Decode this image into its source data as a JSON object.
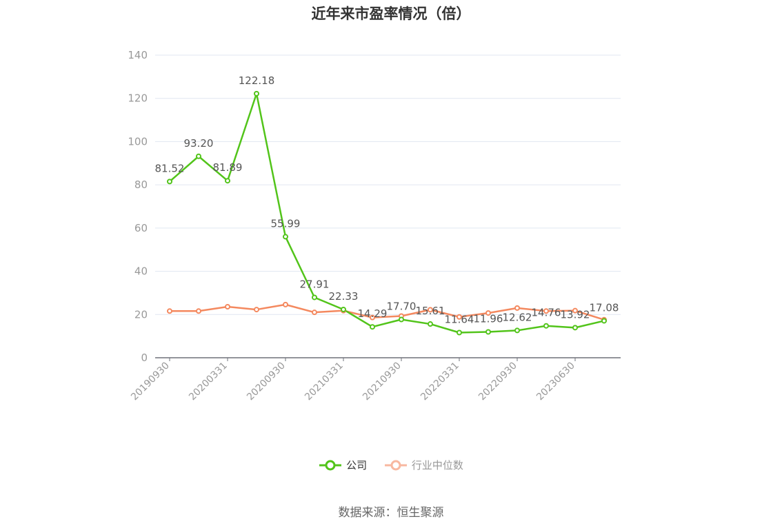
{
  "chart_data": {
    "type": "line",
    "title": "近年来市盈率情况（倍）",
    "ylim": [
      0,
      140
    ],
    "yticks": [
      0,
      20,
      40,
      60,
      80,
      100,
      120,
      140
    ],
    "x_tick_labels": [
      "20190930",
      "20200331",
      "20200930",
      "20210331",
      "20210930",
      "20220331",
      "20220930",
      "20230630"
    ],
    "x_tick_positions": [
      0,
      2,
      4,
      6,
      8,
      10,
      12,
      14
    ],
    "point_count": 16,
    "grid": true,
    "legend_position": "bottom",
    "series": [
      {
        "name": "公司",
        "color": "#52c41a",
        "values": [
          81.52,
          93.2,
          81.89,
          122.18,
          55.99,
          27.91,
          22.33,
          14.29,
          17.7,
          15.61,
          11.64,
          11.96,
          12.62,
          14.76,
          13.92,
          17.08
        ],
        "labels": [
          "81.52",
          "93.20",
          "81.89",
          "122.18",
          "55.99",
          "27.91",
          "22.33",
          "14.29",
          "17.70",
          "15.61",
          "11.64",
          "11.96",
          "12.62",
          "14.76",
          "13.92",
          "17.08"
        ]
      },
      {
        "name": "行业中位数",
        "color": "#f4895f",
        "values": [
          21.6,
          21.6,
          23.6,
          22.3,
          24.6,
          21.0,
          21.8,
          18.6,
          19.3,
          22.2,
          18.9,
          20.7,
          23.0,
          21.6,
          21.8,
          17.6
        ]
      }
    ]
  },
  "legend": {
    "company": "公司",
    "industry": "行业中位数",
    "company_color": "#52c41a",
    "industry_color": "#f8b8a0"
  },
  "footer": {
    "source": "数据来源：恒生聚源"
  }
}
